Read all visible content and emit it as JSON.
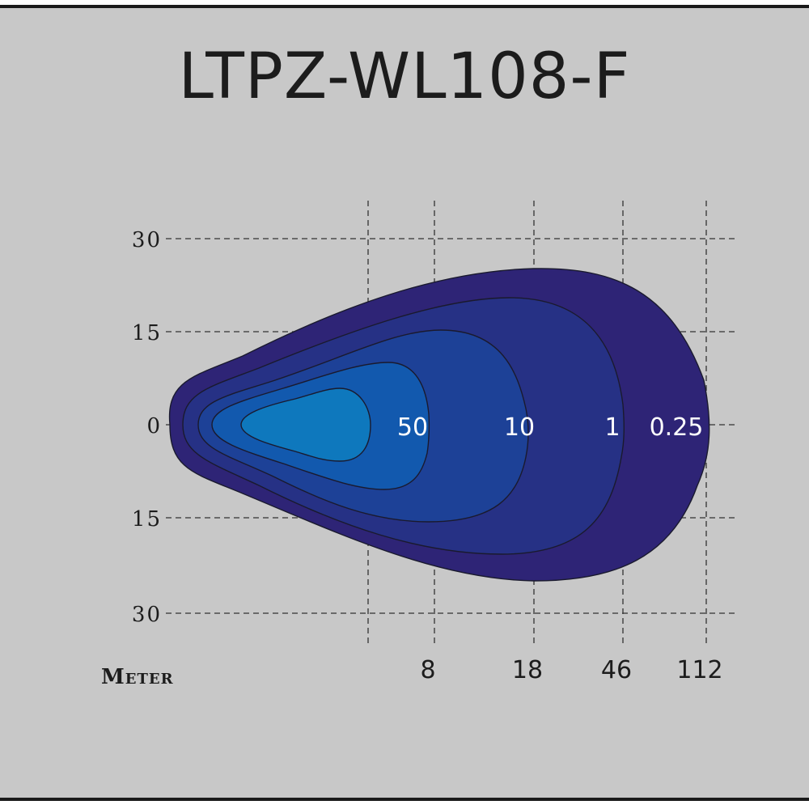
{
  "chart_data": {
    "type": "isolux-contour",
    "title": "LTPZ-WL108-F",
    "xlabel": "Meter",
    "y_ticks": [
      "30",
      "15",
      "0",
      "15",
      "30"
    ],
    "x_ticks": [
      "8",
      "18",
      "46",
      "112"
    ],
    "contours": [
      {
        "label": "0.25",
        "color": "#2e2476"
      },
      {
        "label": "1",
        "color": "#263185"
      },
      {
        "label": "10",
        "color": "#1d4197"
      },
      {
        "label": "50",
        "color": "#1259ae"
      },
      {
        "label": "",
        "color": "#0e78bd"
      }
    ],
    "grid": true
  }
}
